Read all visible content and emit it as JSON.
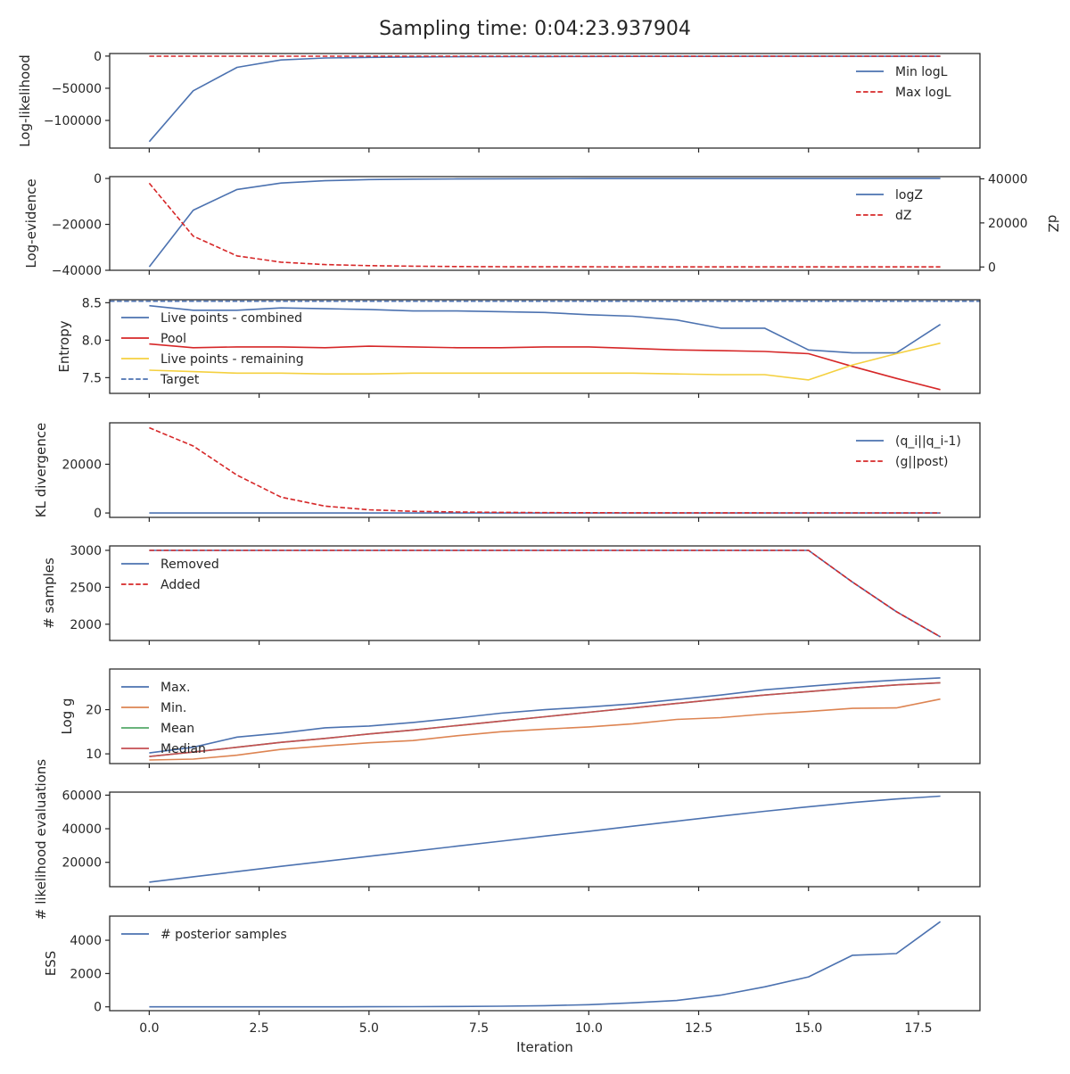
{
  "title": "Sampling time: 0:04:23.937904",
  "xlabel": "Iteration",
  "x_ticks": [
    "0.0",
    "2.5",
    "5.0",
    "7.5",
    "10.0",
    "12.5",
    "15.0",
    "17.5"
  ],
  "colors": {
    "blue": "#4c72b0",
    "red": "#d62728",
    "orange": "#dd8452",
    "green": "#55a868",
    "darkred": "#c44e52",
    "yellow": "#f4d03f",
    "axis": "#262626"
  },
  "chart_data": [
    {
      "type": "line",
      "ylabel": "Log-likelihood",
      "xlim": [
        -0.9,
        18.9
      ],
      "ylim": [
        -143000,
        4000
      ],
      "yticks": [
        0,
        -50000,
        -100000
      ],
      "ytick_labels": [
        "0",
        "−50000",
        "−100000"
      ],
      "legend_loc": "upper-right",
      "series": [
        {
          "name": "Min logL",
          "color": "blue",
          "dash": false,
          "x": [
            0,
            1,
            2,
            3,
            4,
            5,
            6,
            7,
            8,
            9,
            10,
            11,
            12,
            13,
            14,
            15,
            16,
            17,
            18
          ],
          "values": [
            -133000,
            -54000,
            -17500,
            -6000,
            -3000,
            -2000,
            -1400,
            -1000,
            -800,
            -650,
            -550,
            -480,
            -420,
            -380,
            -350,
            -330,
            -310,
            -300,
            -290
          ]
        },
        {
          "name": "Max logL",
          "color": "red",
          "dash": true,
          "x": [
            0,
            1,
            2,
            3,
            4,
            5,
            6,
            7,
            8,
            9,
            10,
            11,
            12,
            13,
            14,
            15,
            16,
            17,
            18
          ],
          "values": [
            -200,
            -200,
            -200,
            -200,
            -200,
            -200,
            -200,
            -200,
            -200,
            -200,
            -200,
            -200,
            -200,
            -200,
            -200,
            -200,
            -200,
            -200,
            -200
          ]
        }
      ]
    },
    {
      "type": "line",
      "ylabel": "Log-evidence",
      "ylabel_right": "dZ",
      "xlim": [
        -0.9,
        18.9
      ],
      "ylim": [
        -40000,
        800
      ],
      "ylim_right": [
        -1500,
        41000
      ],
      "yticks": [
        0,
        -20000,
        -40000
      ],
      "ytick_labels": [
        "0",
        "−20000",
        "−40000"
      ],
      "yticks_right": [
        0,
        20000,
        40000
      ],
      "ytick_labels_right": [
        "0",
        "20000",
        "40000"
      ],
      "legend_loc": "upper-right",
      "series": [
        {
          "name": "logZ",
          "color": "blue",
          "dash": false,
          "axis": "left",
          "x": [
            0,
            1,
            2,
            3,
            4,
            5,
            6,
            7,
            8,
            9,
            10,
            11,
            12,
            13,
            14,
            15,
            16,
            17,
            18
          ],
          "values": [
            -38500,
            -13800,
            -4800,
            -2000,
            -1000,
            -500,
            -300,
            -200,
            -120,
            -90,
            -70,
            -60,
            -50,
            -45,
            -40,
            -38,
            -36,
            -35,
            -34
          ]
        },
        {
          "name": "dZ",
          "color": "red",
          "dash": true,
          "axis": "right",
          "x": [
            0,
            1,
            2,
            3,
            4,
            5,
            6,
            7,
            8,
            9,
            10,
            11,
            12,
            13,
            14,
            15,
            16,
            17,
            18
          ],
          "values": [
            38000,
            14000,
            5000,
            2200,
            1100,
            600,
            350,
            200,
            130,
            90,
            70,
            55,
            45,
            40,
            35,
            30,
            28,
            26,
            25
          ]
        }
      ]
    },
    {
      "type": "line",
      "ylabel": "Entropy",
      "xlim": [
        -0.9,
        18.9
      ],
      "ylim": [
        7.29,
        8.54
      ],
      "yticks": [
        8.5,
        8.0,
        7.5
      ],
      "ytick_labels": [
        "8.5",
        "8.0",
        "7.5"
      ],
      "legend_loc": "upper-left",
      "series": [
        {
          "name": "Live points - combined",
          "color": "blue",
          "dash": false,
          "x": [
            0,
            1,
            2,
            3,
            4,
            5,
            6,
            7,
            8,
            9,
            10,
            11,
            12,
            13,
            14,
            15,
            16,
            17,
            18
          ],
          "values": [
            8.46,
            8.4,
            8.4,
            8.43,
            8.42,
            8.41,
            8.39,
            8.39,
            8.38,
            8.37,
            8.34,
            8.32,
            8.27,
            8.16,
            8.16,
            7.87,
            7.83,
            7.83,
            8.21
          ]
        },
        {
          "name": "Pool",
          "color": "red",
          "dash": false,
          "x": [
            0,
            1,
            2,
            3,
            4,
            5,
            6,
            7,
            8,
            9,
            10,
            11,
            12,
            13,
            14,
            15,
            16,
            17,
            18
          ],
          "values": [
            7.95,
            7.9,
            7.91,
            7.91,
            7.9,
            7.92,
            7.91,
            7.9,
            7.9,
            7.91,
            7.91,
            7.89,
            7.87,
            7.86,
            7.85,
            7.82,
            7.65,
            7.49,
            7.34
          ]
        },
        {
          "name": "Live points - remaining",
          "color": "yellow",
          "dash": false,
          "x": [
            0,
            1,
            2,
            3,
            4,
            5,
            6,
            7,
            8,
            9,
            10,
            11,
            12,
            13,
            14,
            15,
            16,
            17,
            18
          ],
          "values": [
            7.6,
            7.58,
            7.56,
            7.56,
            7.55,
            7.55,
            7.56,
            7.56,
            7.56,
            7.56,
            7.56,
            7.56,
            7.55,
            7.54,
            7.54,
            7.47,
            7.67,
            7.82,
            7.96
          ]
        },
        {
          "name": "Target",
          "color": "blue",
          "dash": true,
          "x": [
            -0.9,
            18.9
          ],
          "values": [
            8.52,
            8.52
          ]
        }
      ]
    },
    {
      "type": "line",
      "ylabel": "KL divergence",
      "xlim": [
        -0.9,
        18.9
      ],
      "ylim": [
        -1800,
        37000
      ],
      "yticks": [
        20000,
        0
      ],
      "ytick_labels": [
        "20000",
        "0"
      ],
      "legend_loc": "upper-right",
      "series": [
        {
          "name": "(q_i||q_i-1)",
          "color": "blue",
          "dash": false,
          "x": [
            0,
            1,
            2,
            3,
            4,
            5,
            6,
            7,
            8,
            9,
            10,
            11,
            12,
            13,
            14,
            15,
            16,
            17,
            18
          ],
          "values": [
            0,
            0,
            0,
            0,
            0,
            0,
            0,
            0,
            0,
            0,
            0,
            0,
            0,
            0,
            0,
            0,
            0,
            0,
            0
          ]
        },
        {
          "name": "(g||post)",
          "color": "red",
          "dash": true,
          "x": [
            0,
            1,
            2,
            3,
            4,
            5,
            6,
            7,
            8,
            9,
            10,
            11,
            12,
            13,
            14,
            15,
            16,
            17,
            18
          ],
          "values": [
            35000,
            27500,
            15500,
            6500,
            2800,
            1300,
            700,
            400,
            250,
            150,
            100,
            80,
            60,
            50,
            40,
            30,
            25,
            20,
            15
          ]
        }
      ]
    },
    {
      "type": "line",
      "ylabel": "# samples",
      "xlim": [
        -0.9,
        18.9
      ],
      "ylim": [
        1780,
        3060
      ],
      "yticks": [
        3000,
        2500,
        2000
      ],
      "ytick_labels": [
        "3000",
        "2500",
        "2000"
      ],
      "legend_loc": "upper-left",
      "series": [
        {
          "name": "Removed",
          "color": "blue",
          "dash": false,
          "x": [
            0,
            1,
            2,
            3,
            4,
            5,
            6,
            7,
            8,
            9,
            10,
            11,
            12,
            13,
            14,
            15,
            16,
            17,
            18
          ],
          "values": [
            3000,
            3000,
            3000,
            3000,
            3000,
            3000,
            3000,
            3000,
            3000,
            3000,
            3000,
            3000,
            3000,
            3000,
            3000,
            3000,
            2570,
            2170,
            1830
          ]
        },
        {
          "name": "Added",
          "color": "red",
          "dash": true,
          "x": [
            0,
            1,
            2,
            3,
            4,
            5,
            6,
            7,
            8,
            9,
            10,
            11,
            12,
            13,
            14,
            15,
            16,
            17,
            18
          ],
          "values": [
            3000,
            3000,
            3000,
            3000,
            3000,
            3000,
            3000,
            3000,
            3000,
            3000,
            3000,
            3000,
            3000,
            3000,
            3000,
            3000,
            2570,
            2170,
            1830
          ]
        }
      ]
    },
    {
      "type": "line",
      "ylabel": "Log g",
      "xlim": [
        -0.9,
        18.9
      ],
      "ylim": [
        7.8,
        29.2
      ],
      "yticks": [
        20,
        10
      ],
      "ytick_labels": [
        "20",
        "10"
      ],
      "legend_loc": "upper-left",
      "series": [
        {
          "name": "Max.",
          "color": "blue",
          "dash": false,
          "x": [
            0,
            1,
            2,
            3,
            4,
            5,
            6,
            7,
            8,
            9,
            10,
            11,
            12,
            13,
            14,
            15,
            16,
            17,
            18
          ],
          "values": [
            10.2,
            11.5,
            13.8,
            14.7,
            15.9,
            16.3,
            17.1,
            18.1,
            19.2,
            20.0,
            20.6,
            21.3,
            22.3,
            23.3,
            24.5,
            25.3,
            26.1,
            26.7,
            27.2
          ]
        },
        {
          "name": "Min.",
          "color": "orange",
          "dash": false,
          "x": [
            0,
            1,
            2,
            3,
            4,
            5,
            6,
            7,
            8,
            9,
            10,
            11,
            12,
            13,
            14,
            15,
            16,
            17,
            18
          ],
          "values": [
            8.6,
            8.8,
            9.7,
            11.0,
            11.8,
            12.5,
            13.0,
            14.1,
            15.0,
            15.6,
            16.1,
            16.8,
            17.8,
            18.2,
            19.0,
            19.6,
            20.3,
            20.4,
            22.4
          ]
        },
        {
          "name": "Mean",
          "color": "green",
          "dash": false,
          "x": [
            0,
            1,
            2,
            3,
            4,
            5,
            6,
            7,
            8,
            9,
            10,
            11,
            12,
            13,
            14,
            15,
            16,
            17,
            18
          ],
          "values": [
            9.4,
            10.4,
            11.5,
            12.6,
            13.5,
            14.5,
            15.4,
            16.4,
            17.4,
            18.4,
            19.4,
            20.4,
            21.4,
            22.4,
            23.3,
            24.1,
            24.9,
            25.6,
            26.1
          ]
        },
        {
          "name": "Median",
          "color": "darkred",
          "dash": false,
          "x": [
            0,
            1,
            2,
            3,
            4,
            5,
            6,
            7,
            8,
            9,
            10,
            11,
            12,
            13,
            14,
            15,
            16,
            17,
            18
          ],
          "values": [
            9.4,
            10.4,
            11.5,
            12.6,
            13.5,
            14.5,
            15.4,
            16.4,
            17.4,
            18.4,
            19.4,
            20.4,
            21.4,
            22.4,
            23.3,
            24.1,
            24.9,
            25.6,
            26.1
          ]
        }
      ]
    },
    {
      "type": "line",
      "ylabel": "# likelihood evaluations",
      "xlim": [
        -0.9,
        18.9
      ],
      "ylim": [
        5500,
        61800
      ],
      "yticks": [
        60000,
        40000,
        20000
      ],
      "ytick_labels": [
        "60000",
        "40000",
        "20000"
      ],
      "legend_loc": "none",
      "series": [
        {
          "name": "# likelihood evaluations",
          "color": "blue",
          "dash": false,
          "x": [
            0,
            1,
            2,
            3,
            4,
            5,
            6,
            7,
            8,
            9,
            10,
            11,
            12,
            13,
            14,
            15,
            16,
            17,
            18
          ],
          "values": [
            8200,
            11400,
            14500,
            17600,
            20600,
            23600,
            26600,
            29600,
            32600,
            35600,
            38500,
            41500,
            44500,
            47500,
            50400,
            53100,
            55600,
            57700,
            59400
          ]
        }
      ]
    },
    {
      "type": "line",
      "ylabel": "ESS",
      "xlim": [
        -0.9,
        18.9
      ],
      "ylim": [
        -230,
        5450
      ],
      "yticks": [
        4000,
        2000,
        0
      ],
      "ytick_labels": [
        "4000",
        "2000",
        "0"
      ],
      "legend_loc": "upper-left",
      "series": [
        {
          "name": "# posterior samples",
          "color": "blue",
          "dash": false,
          "x": [
            0,
            1,
            2,
            3,
            4,
            5,
            6,
            7,
            8,
            9,
            10,
            11,
            12,
            13,
            14,
            15,
            16,
            17,
            18
          ],
          "values": [
            0,
            0,
            0,
            0,
            2,
            5,
            10,
            20,
            40,
            70,
            130,
            240,
            380,
            700,
            1200,
            1800,
            3100,
            3200,
            5120
          ]
        }
      ]
    }
  ]
}
